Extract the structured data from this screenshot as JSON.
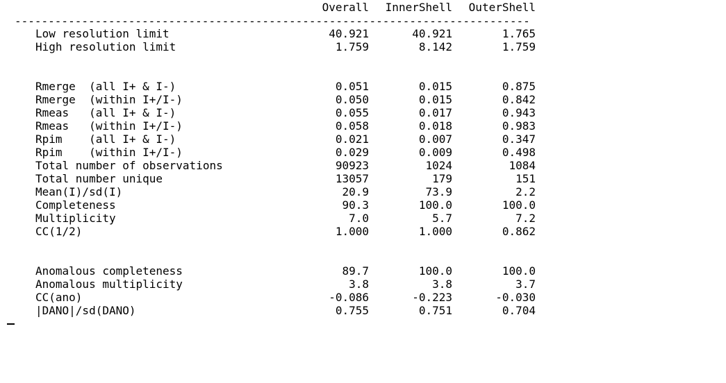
{
  "columns": {
    "overall": "Overall",
    "inner": "InnerShell",
    "outer": "OuterShell"
  },
  "divider": "-----------------------------------------------------------------------------",
  "groups": [
    {
      "rows": [
        {
          "label": "Low resolution limit",
          "overall": "40.921",
          "inner": "40.921",
          "outer": "1.765"
        },
        {
          "label": "High resolution limit",
          "overall": "1.759",
          "inner": "8.142",
          "outer": "1.759"
        }
      ]
    },
    {
      "rows": [
        {
          "label": "Rmerge  (all I+ & I-)",
          "overall": "0.051",
          "inner": "0.015",
          "outer": "0.875"
        },
        {
          "label": "Rmerge  (within I+/I-)",
          "overall": "0.050",
          "inner": "0.015",
          "outer": "0.842"
        },
        {
          "label": "Rmeas   (all I+ & I-)",
          "overall": "0.055",
          "inner": "0.017",
          "outer": "0.943"
        },
        {
          "label": "Rmeas   (within I+/I-)",
          "overall": "0.058",
          "inner": "0.018",
          "outer": "0.983"
        },
        {
          "label": "Rpim    (all I+ & I-)",
          "overall": "0.021",
          "inner": "0.007",
          "outer": "0.347"
        },
        {
          "label": "Rpim    (within I+/I-)",
          "overall": "0.029",
          "inner": "0.009",
          "outer": "0.498"
        },
        {
          "label": "Total number of observations",
          "overall": "90923",
          "inner": "1024",
          "outer": "1084"
        },
        {
          "label": "Total number unique",
          "overall": "13057",
          "inner": "179",
          "outer": "151"
        },
        {
          "label": "Mean(I)/sd(I)",
          "overall": "20.9",
          "inner": "73.9",
          "outer": "2.2"
        },
        {
          "label": "Completeness",
          "overall": "90.3",
          "inner": "100.0",
          "outer": "100.0"
        },
        {
          "label": "Multiplicity",
          "overall": "7.0",
          "inner": "5.7",
          "outer": "7.2"
        },
        {
          "label": "CC(1/2)",
          "overall": "1.000",
          "inner": "1.000",
          "outer": "0.862"
        }
      ]
    },
    {
      "rows": [
        {
          "label": "Anomalous completeness",
          "overall": "89.7",
          "inner": "100.0",
          "outer": "100.0"
        },
        {
          "label": "Anomalous multiplicity",
          "overall": "3.8",
          "inner": "3.8",
          "outer": "3.7"
        },
        {
          "label": "CC(ano)",
          "overall": "-0.086",
          "inner": "-0.223",
          "outer": "-0.030"
        },
        {
          "label": "|DANO|/sd(DANO)",
          "overall": "0.755",
          "inner": "0.751",
          "outer": "0.704"
        }
      ]
    }
  ]
}
